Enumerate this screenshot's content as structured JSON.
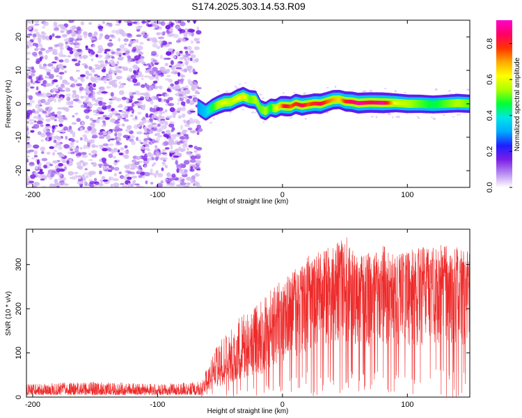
{
  "title": "S174.2025.303.14.53.R09",
  "colors": {
    "snr_line": "#ee2a2a",
    "axis": "#000000",
    "background": "#ffffff",
    "noise_light": "#d7bff2",
    "noise_dark": "#7a1ee6"
  },
  "chart_data": [
    {
      "type": "heatmap",
      "name": "spectrogram",
      "xlabel": "Height of straight line (km)",
      "ylabel": "Frequency (Hz)",
      "xlim": [
        -205,
        150
      ],
      "ylim": [
        -25,
        25
      ],
      "xticks": [
        -200,
        -100,
        0,
        100
      ],
      "xtick_labels": [
        "-200",
        "-100",
        "0",
        "100"
      ],
      "yticks": [
        -20,
        -10,
        0,
        10,
        20
      ],
      "ytick_labels": [
        "-20",
        "-10",
        "0",
        "10",
        "20"
      ],
      "noise_region_x": [
        -205,
        -68
      ],
      "signal_start_x": -68,
      "ridge": {
        "x": [
          -68,
          -62,
          -57,
          -52,
          -47,
          -42,
          -37,
          -32,
          -27,
          -22,
          -18,
          -14,
          -10,
          -6,
          -2,
          2,
          6,
          10,
          15,
          20,
          25,
          30,
          35,
          40,
          45,
          50,
          55,
          60,
          70,
          80,
          90,
          100,
          110,
          120,
          130,
          140,
          150
        ],
        "frequency_hz": [
          -1.0,
          -2.5,
          -1.2,
          -0.3,
          0.4,
          0.5,
          1.5,
          2.2,
          1.4,
          1.2,
          -1.6,
          -2.2,
          -1.1,
          -1.4,
          -0.6,
          -0.7,
          -0.8,
          0.0,
          -0.5,
          -0.2,
          0.1,
          0.0,
          0.6,
          1.2,
          1.3,
          0.7,
          0.6,
          0.2,
          0.4,
          0.3,
          0.3,
          0.0,
          0.0,
          -0.2,
          0.0,
          0.2,
          0.0
        ],
        "amplitude": [
          0.3,
          0.35,
          0.45,
          0.55,
          0.6,
          0.55,
          0.6,
          0.65,
          0.5,
          0.55,
          0.5,
          0.55,
          0.45,
          0.6,
          0.7,
          0.85,
          0.75,
          0.8,
          0.85,
          0.75,
          0.8,
          0.85,
          0.75,
          0.7,
          0.65,
          0.8,
          0.85,
          0.9,
          0.85,
          0.9,
          0.6,
          0.55,
          0.5,
          0.45,
          0.5,
          0.55,
          0.5
        ]
      }
    },
    {
      "type": "colorbar",
      "label": "Normalized spectral amplitude",
      "range": [
        0,
        0.93
      ],
      "ticks": [
        0,
        0.2,
        0.4,
        0.6,
        0.8
      ],
      "tick_labels": [
        "0.0",
        "0.2",
        "0.4",
        "0.6",
        "0.8"
      ],
      "colors": [
        "#ffffff",
        "#b88cf2",
        "#7a1ee6",
        "#1e1eff",
        "#00aaff",
        "#00e6e6",
        "#00ff33",
        "#aaff00",
        "#ffff00",
        "#ffaa00",
        "#ff3300",
        "#ff0066",
        "#ff00cc"
      ]
    },
    {
      "type": "line",
      "name": "snr",
      "xlabel": "Height of straight line (km)",
      "ylabel": "SNR (10 * v/v)",
      "xlim": [
        -205,
        150
      ],
      "ylim": [
        0,
        380
      ],
      "xticks": [
        -200,
        -100,
        0,
        100
      ],
      "xtick_labels": [
        "-200",
        "-100",
        "0",
        "100"
      ],
      "yticks": [
        0,
        100,
        200,
        300
      ],
      "ytick_labels": [
        "0",
        "100",
        "200",
        "300"
      ],
      "envelope": {
        "x": [
          -205,
          -150,
          -100,
          -65,
          -60,
          -55,
          -50,
          -45,
          -40,
          -35,
          -30,
          -25,
          -20,
          -15,
          -10,
          -5,
          0,
          5,
          10,
          15,
          20,
          25,
          30,
          35,
          40,
          45,
          50,
          55,
          60,
          65,
          70,
          80,
          90,
          100,
          110,
          120,
          130,
          140,
          150
        ],
        "mean": [
          15,
          15,
          15,
          15,
          30,
          45,
          55,
          65,
          75,
          85,
          95,
          100,
          110,
          120,
          135,
          160,
          175,
          190,
          200,
          215,
          230,
          245,
          255,
          255,
          260,
          270,
          270,
          265,
          260,
          255,
          255,
          255,
          255,
          255,
          260,
          260,
          260,
          265,
          260
        ],
        "peak": [
          30,
          35,
          30,
          35,
          70,
          110,
          130,
          150,
          160,
          180,
          190,
          195,
          210,
          225,
          240,
          255,
          265,
          280,
          290,
          300,
          320,
          320,
          330,
          340,
          345,
          350,
          370,
          340,
          330,
          320,
          330,
          345,
          330,
          330,
          340,
          345,
          345,
          340,
          335
        ]
      }
    }
  ]
}
